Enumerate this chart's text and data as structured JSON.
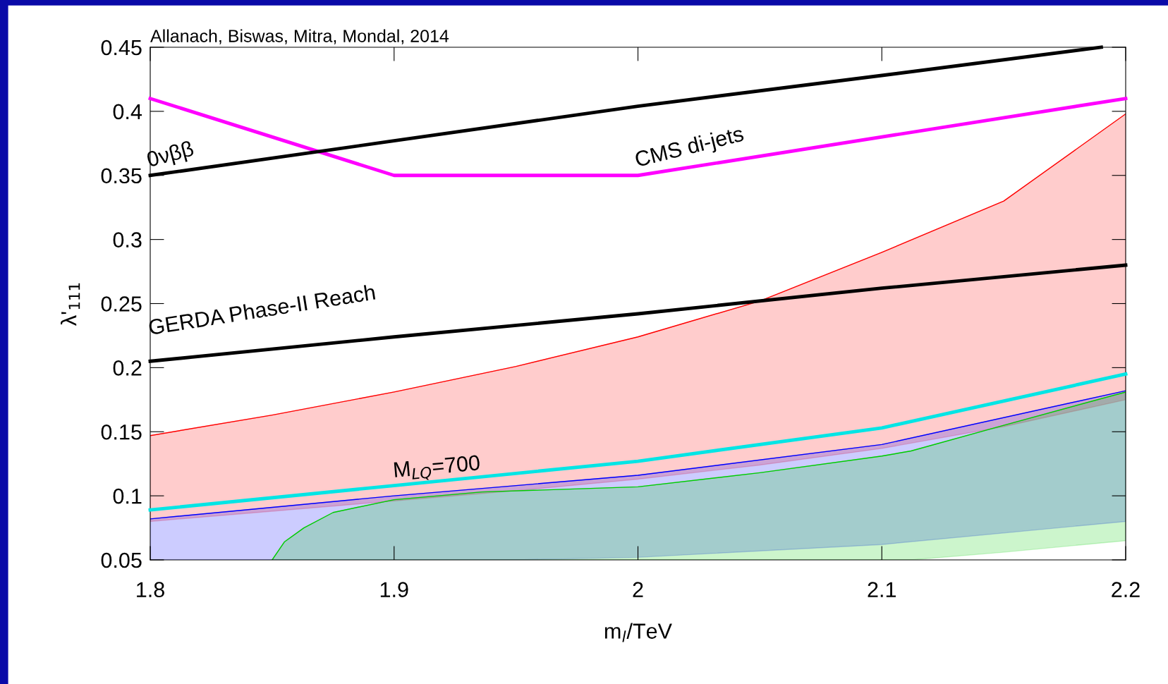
{
  "chart_data": {
    "type": "line",
    "xlabel": "m$_{l}$/TeV",
    "ylabel": "λ'$_{111}$",
    "xlim": [
      1.8,
      2.2
    ],
    "xticks": [
      1.8,
      1.9,
      2,
      2.1,
      2.2
    ],
    "ylim": [
      0.05,
      0.45
    ],
    "yticks": [
      0.05,
      0.1,
      0.15,
      0.2,
      0.25,
      0.3,
      0.35,
      0.4,
      0.45
    ],
    "grid": false,
    "legend": false,
    "marker": "none",
    "line_style": "solid",
    "series": [
      {
        "color": "#ff0000",
        "x": [
          1.8,
          1.85,
          1.9,
          1.95,
          2.0,
          2.05,
          2.1,
          2.15,
          2.2
        ],
        "values": [
          0.147,
          0.163,
          0.181,
          0.201,
          0.224,
          0.252,
          0.29,
          0.33,
          0.398
        ],
        "upper": [
          0.147,
          0.163,
          0.181,
          0.201,
          0.224,
          0.252,
          0.29,
          0.33,
          0.398
        ],
        "lower": [
          0.08,
          0.088,
          0.096,
          0.104,
          0.113,
          0.124,
          0.137,
          0.154,
          0.175
        ]
      },
      {
        "color": "#0000ff",
        "x": [
          1.8,
          1.9,
          1.95,
          2.0,
          2.1,
          2.2
        ],
        "values": [
          0.082,
          0.1,
          0.108,
          0.116,
          0.14,
          0.182
        ],
        "upper": [
          0.082,
          0.1,
          0.108,
          0.116,
          0.14,
          0.182
        ],
        "lower": [
          0.05,
          0.05,
          0.05,
          0.052,
          0.062,
          0.08
        ]
      },
      {
        "color": "#00cc00",
        "x": [
          1.85,
          1.855,
          1.863,
          1.875,
          1.9,
          1.936,
          2.0,
          2.05,
          2.1,
          2.112,
          2.15,
          2.2
        ],
        "values": [
          0.05,
          0.064,
          0.075,
          0.087,
          0.097,
          0.103,
          0.107,
          0.118,
          0.131,
          0.135,
          0.155,
          0.181
        ],
        "upper": [
          0.05,
          0.064,
          0.075,
          0.087,
          0.097,
          0.103,
          0.107,
          0.118,
          0.131,
          0.135,
          0.155,
          0.181
        ],
        "lower": [
          0.05,
          0.05,
          0.05,
          0.05,
          0.05,
          0.05,
          0.05,
          0.05,
          0.05,
          0.05,
          0.056,
          0.065
        ]
      },
      {
        "type": "line",
        "color": "#00e5e5",
        "x": [
          1.8,
          1.9,
          2.0,
          2.1,
          2.2
        ],
        "values": [
          0.089,
          0.108,
          0.127,
          0.153,
          0.195
        ]
      },
      {
        "type": "line",
        "color": "#000000",
        "x": [
          1.8,
          1.9,
          2.0,
          2.1,
          2.2
        ],
        "values": [
          0.205,
          0.224,
          0.242,
          0.262,
          0.28
        ]
      },
      {
        "type": "line",
        "color": "#ff00ff",
        "x": [
          1.8,
          1.9,
          2.0,
          2.2
        ],
        "values": [
          0.41,
          0.35,
          0.35,
          0.41
        ]
      },
      {
        "type": "line",
        "color": "#000000",
        "x": [
          1.8,
          1.9,
          2.0,
          2.1,
          2.19
        ],
        "values": [
          0.35,
          0.377,
          0.404,
          0.428,
          0.45
        ]
      }
    ],
    "annotations": [
      "Allanach, Biswas, Mitra, Mondal, 2014",
      {
        "text": "0νββ",
        "x": 1.8,
        "y": 0.35
      },
      {
        "text": "CMS di-jets",
        "x": 2.0,
        "y": 0.35
      },
      "GERDA Phase-II Reach",
      "M$_{LQ}$=700"
    ]
  }
}
